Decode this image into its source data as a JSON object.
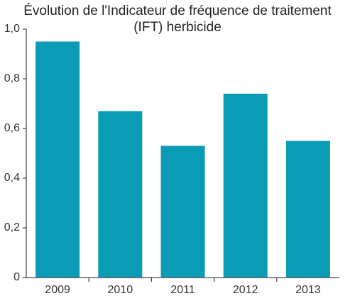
{
  "colors": {
    "bar": "#0a9bb5",
    "axis": "#444444",
    "text": "#333333"
  },
  "chart_data": {
    "type": "bar",
    "title_lines": [
      "Évolution de l'Indicateur de fréquence de traitement",
      "(IFT) herbicide"
    ],
    "categories": [
      "2009",
      "2010",
      "2011",
      "2012",
      "2013"
    ],
    "values": [
      0.95,
      0.67,
      0.53,
      0.74,
      0.55
    ],
    "ylim": [
      0,
      1
    ],
    "yticks": [
      0,
      0.2,
      0.4,
      0.6,
      0.8,
      1.0
    ],
    "ytick_labels": [
      "0",
      "0,2",
      "0,4",
      "0,6",
      "0,8",
      "1,0"
    ],
    "xlabel": "",
    "ylabel": "",
    "grid": false,
    "legend": "none"
  }
}
